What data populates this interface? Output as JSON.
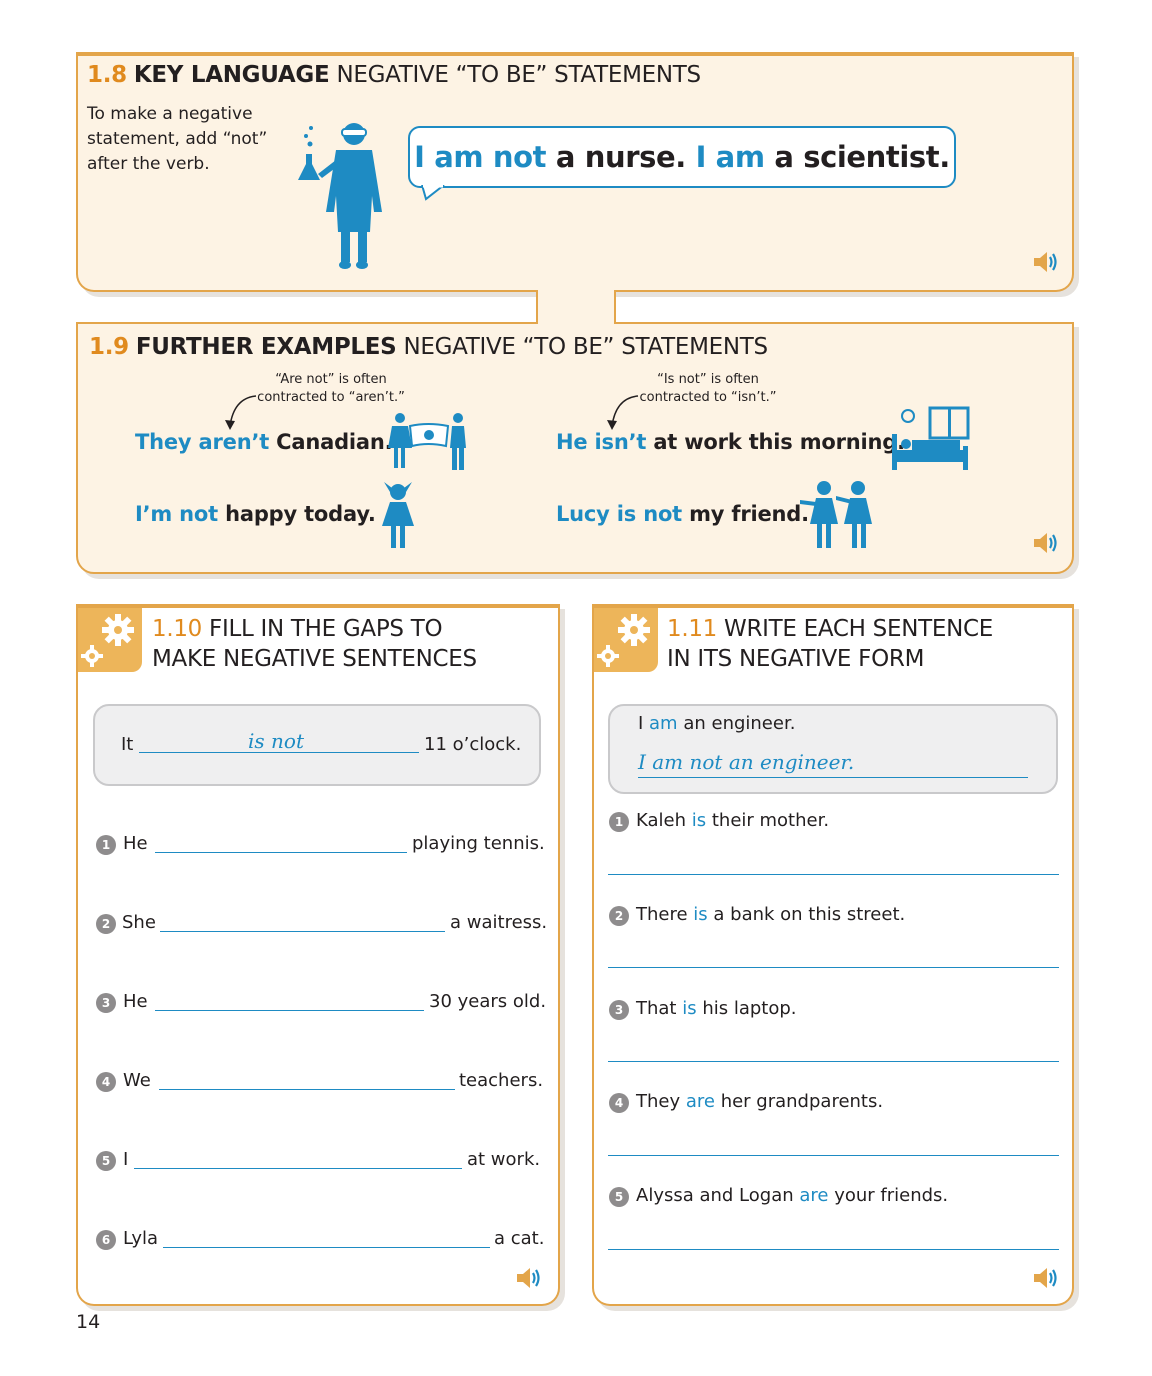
{
  "section_1_8": {
    "number": "1.8",
    "title_bold": "KEY LANGUAGE",
    "title_rest": "NEGATIVE “TO BE” STATEMENTS",
    "intro": "To make a negative statement, add “not” after the verb.",
    "bubble": {
      "p1": "I am not",
      "p2": " a nurse. ",
      "p3": "I am",
      "p4": " a scientist."
    },
    "icon": "scientist-icon"
  },
  "section_1_9": {
    "number": "1.9",
    "title_bold": "FURTHER EXAMPLES",
    "title_rest": "NEGATIVE “TO BE” STATEMENTS",
    "note_1": "“Are not” is often contracted to “aren’t.”",
    "note_2": "“Is not” is often contracted to “isn’t.”",
    "examples": [
      {
        "blue": "They aren’t",
        "rest": " Canadian.",
        "icon": "japan-flag-people-icon"
      },
      {
        "blue": "He isn’t",
        "rest": " at work this morning.",
        "icon": "person-in-bed-icon"
      },
      {
        "blue": "I’m not",
        "rest": " happy today.",
        "icon": "crying-girl-icon"
      },
      {
        "blue": "Lucy is not",
        "rest": " my friend.",
        "icon": "two-girls-icon"
      }
    ]
  },
  "section_1_10": {
    "number": "1.10",
    "title_line1": "FILL IN THE GAPS TO",
    "title_line2": "MAKE NEGATIVE SENTENCES",
    "example": {
      "start": "It",
      "answer": "is not",
      "end": "11 o’clock."
    },
    "items": [
      {
        "n": "1",
        "start": "He",
        "end": "playing tennis."
      },
      {
        "n": "2",
        "start": "She",
        "end": "a waitress."
      },
      {
        "n": "3",
        "start": "He",
        "end": "30 years old."
      },
      {
        "n": "4",
        "start": "We",
        "end": "teachers."
      },
      {
        "n": "5",
        "start": "I",
        "end": "at work."
      },
      {
        "n": "6",
        "start": "Lyla",
        "end": "a cat."
      }
    ]
  },
  "section_1_11": {
    "number": "1.11",
    "title_line1": "WRITE EACH SENTENCE",
    "title_line2": "IN ITS NEGATIVE FORM",
    "example": {
      "pre": "I ",
      "verb": "am",
      "post": " an engineer.",
      "answer": "I am not an engineer."
    },
    "items": [
      {
        "n": "1",
        "pre": "Kaleh ",
        "verb": "is",
        "post": " their mother."
      },
      {
        "n": "2",
        "pre": "There ",
        "verb": "is",
        "post": " a bank on this street."
      },
      {
        "n": "3",
        "pre": "That ",
        "verb": "is",
        "post": " his laptop."
      },
      {
        "n": "4",
        "pre": "They ",
        "verb": "are",
        "post": " her grandparents."
      },
      {
        "n": "5",
        "pre": "Alyssa and Logan ",
        "verb": "are",
        "post": " your friends."
      }
    ]
  },
  "page_number": "14",
  "colors": {
    "blue": "#1e8bc3",
    "orange": "#e08a1e",
    "panel": "#fdf3e4",
    "border": "#e3a54a"
  }
}
